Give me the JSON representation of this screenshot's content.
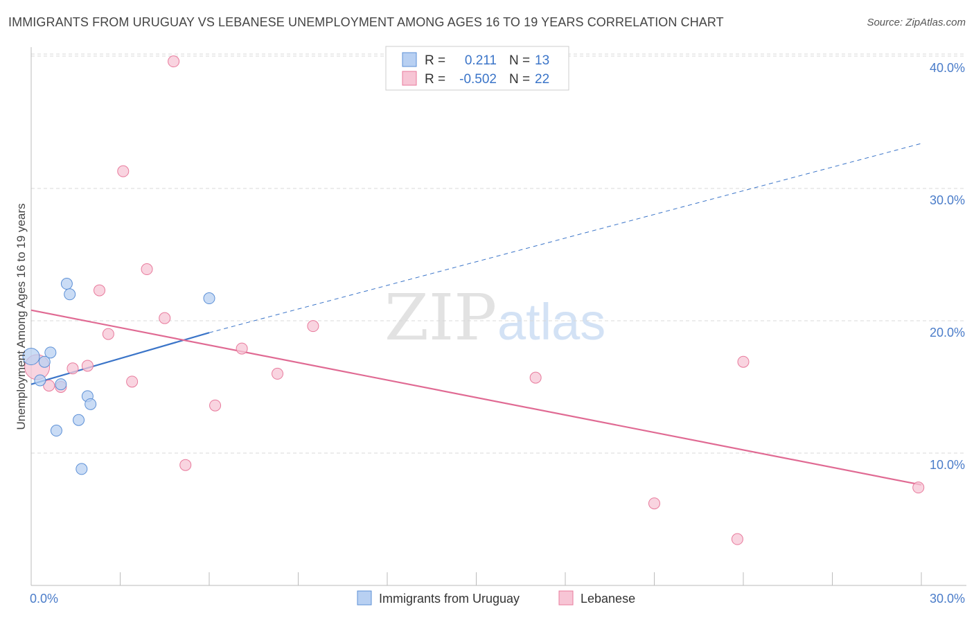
{
  "header": {
    "title": "IMMIGRANTS FROM URUGUAY VS LEBANESE UNEMPLOYMENT AMONG AGES 16 TO 19 YEARS CORRELATION CHART",
    "source": "Source: ZipAtlas.com"
  },
  "watermark": {
    "zip": "ZIP",
    "atlas": "atlas"
  },
  "colors": {
    "blue": "#5b8fd6",
    "blue_fill": "#b8d0f2",
    "blue_line": "#3a74c8",
    "pink": "#e87a9c",
    "pink_fill": "#f7c5d5",
    "pink_line": "#e06a93",
    "axis_text": "#4a7cc9",
    "grid": "#d8d8d8"
  },
  "legend": {
    "r_label": "R =",
    "n_label": "N =",
    "series": [
      {
        "r": "0.211",
        "n": "13"
      },
      {
        "r": "-0.502",
        "n": "22"
      }
    ]
  },
  "chart_data": {
    "type": "scatter",
    "title": "IMMIGRANTS FROM URUGUAY VS LEBANESE UNEMPLOYMENT AMONG AGES 16 TO 19 YEARS CORRELATION CHART",
    "xlabel": "",
    "ylabel": "Unemployment Among Ages 16 to 19 years",
    "xlim": [
      0,
      30
    ],
    "ylim": [
      0,
      40
    ],
    "x_tick_labels": [
      "0.0%",
      "30.0%"
    ],
    "y_ticks": [
      10,
      20,
      30,
      40
    ],
    "y_tick_labels": [
      "10.0%",
      "20.0%",
      "30.0%",
      "40.0%"
    ],
    "legend_position": "bottom-center",
    "series": [
      {
        "name": "Immigrants from Uruguay",
        "color": "blue",
        "points": [
          {
            "x": 0.0,
            "y": 17.3,
            "s": "l"
          },
          {
            "x": 0.3,
            "y": 15.5,
            "s": "m"
          },
          {
            "x": 0.45,
            "y": 16.9,
            "s": "m"
          },
          {
            "x": 0.65,
            "y": 17.6,
            "s": "m"
          },
          {
            "x": 0.85,
            "y": 11.7,
            "s": "m"
          },
          {
            "x": 1.0,
            "y": 15.2,
            "s": "m"
          },
          {
            "x": 1.2,
            "y": 22.8,
            "s": "m"
          },
          {
            "x": 1.3,
            "y": 22.0,
            "s": "m"
          },
          {
            "x": 1.6,
            "y": 12.5,
            "s": "m"
          },
          {
            "x": 1.7,
            "y": 8.8,
            "s": "m"
          },
          {
            "x": 1.9,
            "y": 14.3,
            "s": "m"
          },
          {
            "x": 2.0,
            "y": 13.7,
            "s": "m"
          },
          {
            "x": 6.0,
            "y": 21.7,
            "s": "m"
          }
        ],
        "trend": {
          "x0": 0.0,
          "y0": 15.2,
          "x1": 6.0,
          "y1": 19.1,
          "dashed_to_x": 30.0,
          "dashed_to_y": 33.4
        }
      },
      {
        "name": "Lebanese",
        "color": "pink",
        "points": [
          {
            "x": 0.2,
            "y": 16.5,
            "s": "xl"
          },
          {
            "x": 0.6,
            "y": 15.1,
            "s": "m"
          },
          {
            "x": 1.0,
            "y": 15.0,
            "s": "m"
          },
          {
            "x": 1.4,
            "y": 16.4,
            "s": "m"
          },
          {
            "x": 1.9,
            "y": 16.6,
            "s": "m"
          },
          {
            "x": 2.3,
            "y": 22.3,
            "s": "m"
          },
          {
            "x": 2.6,
            "y": 19.0,
            "s": "m"
          },
          {
            "x": 3.1,
            "y": 31.3,
            "s": "m"
          },
          {
            "x": 3.4,
            "y": 15.4,
            "s": "m"
          },
          {
            "x": 3.9,
            "y": 23.9,
            "s": "m"
          },
          {
            "x": 4.5,
            "y": 20.2,
            "s": "m"
          },
          {
            "x": 4.8,
            "y": 39.6,
            "s": "m"
          },
          {
            "x": 5.2,
            "y": 9.1,
            "s": "m"
          },
          {
            "x": 6.2,
            "y": 13.6,
            "s": "m"
          },
          {
            "x": 7.1,
            "y": 17.9,
            "s": "m"
          },
          {
            "x": 8.3,
            "y": 16.0,
            "s": "m"
          },
          {
            "x": 9.5,
            "y": 19.6,
            "s": "m"
          },
          {
            "x": 17.0,
            "y": 15.7,
            "s": "m"
          },
          {
            "x": 21.0,
            "y": 6.2,
            "s": "m"
          },
          {
            "x": 23.8,
            "y": 3.5,
            "s": "m"
          },
          {
            "x": 24.0,
            "y": 16.9,
            "s": "m"
          },
          {
            "x": 29.9,
            "y": 7.4,
            "s": "m"
          }
        ],
        "trend": {
          "x0": 0.0,
          "y0": 20.8,
          "x1": 30.0,
          "y1": 7.6
        }
      }
    ]
  },
  "bottom_legend": {
    "items": [
      {
        "label": "Immigrants from Uruguay",
        "color": "blue"
      },
      {
        "label": "Lebanese",
        "color": "pink"
      }
    ]
  }
}
